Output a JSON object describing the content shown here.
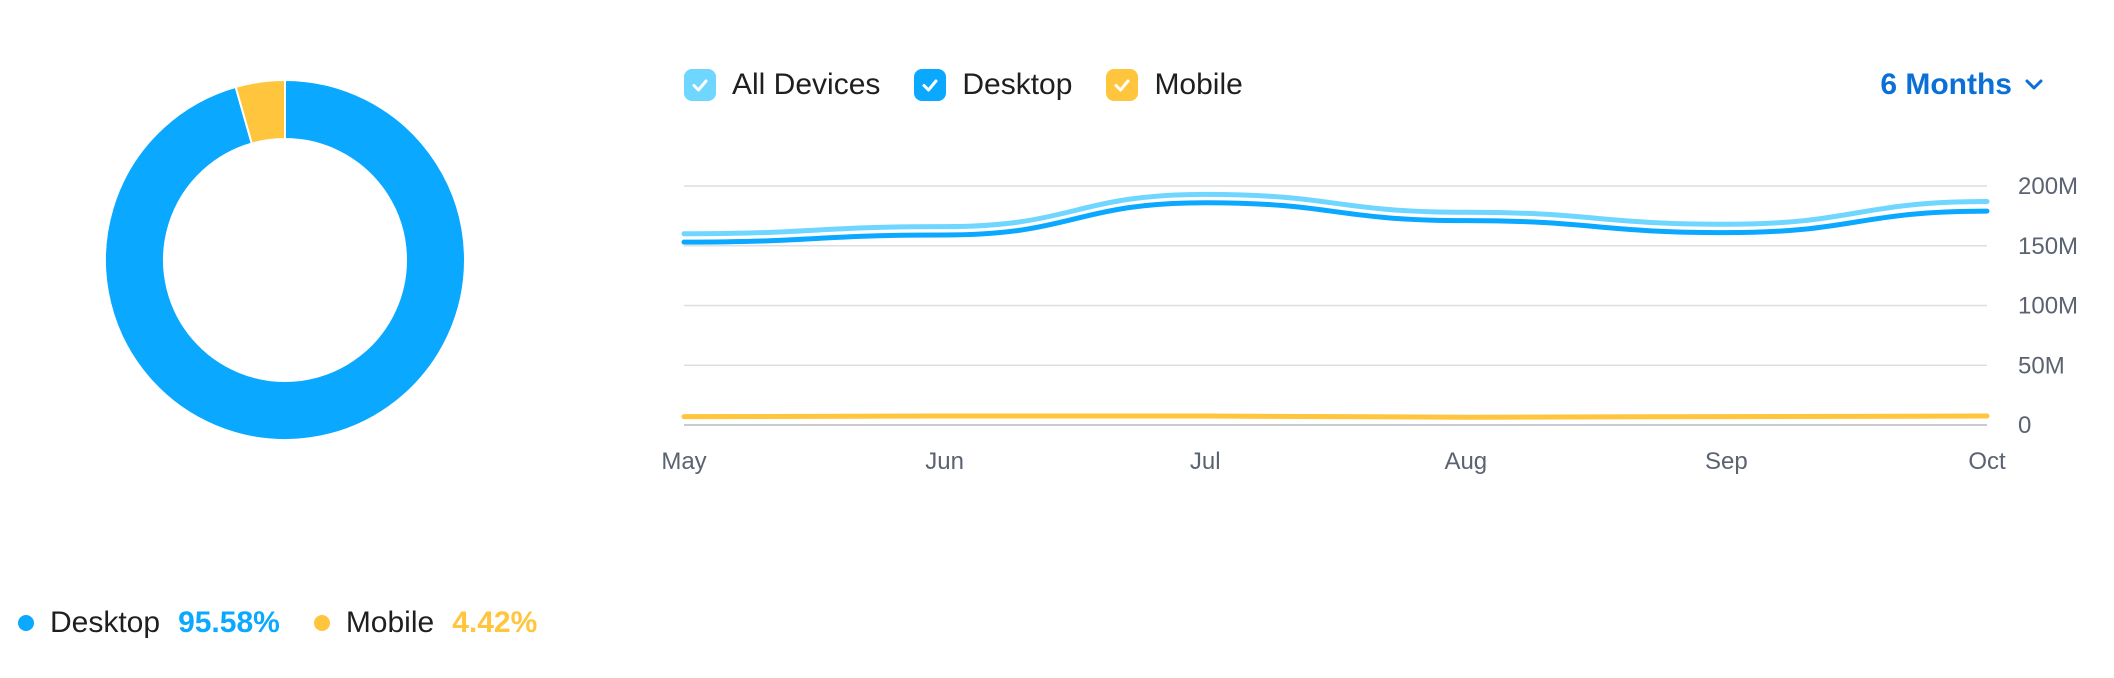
{
  "colors": {
    "all_devices": "#6fd6ff",
    "desktop": "#0aa8ff",
    "mobile": "#ffc53d",
    "grid": "#dcdfe3",
    "accent": "#0a6fd6"
  },
  "pie_legend": [
    {
      "label": "Desktop",
      "value_text": "95.58%",
      "color": "#0aa8ff"
    },
    {
      "label": "Mobile",
      "value_text": "4.42%",
      "color": "#ffc53d"
    }
  ],
  "toggles": [
    {
      "label": "All Devices",
      "color": "#6fd6ff",
      "icon": "check-icon"
    },
    {
      "label": "Desktop",
      "color": "#0aa8ff",
      "icon": "check-icon"
    },
    {
      "label": "Mobile",
      "color": "#ffc53d",
      "icon": "check-icon"
    }
  ],
  "period": {
    "label": "6 Months",
    "icon": "chevron-down-icon"
  },
  "chart_data": [
    {
      "type": "pie",
      "donut": true,
      "categories": [
        "Desktop",
        "Mobile"
      ],
      "values": [
        95.58,
        4.42
      ],
      "colors": [
        "#0aa8ff",
        "#ffc53d"
      ]
    },
    {
      "type": "line",
      "categories": [
        "May",
        "Jun",
        "Jul",
        "Aug",
        "Sep",
        "Oct"
      ],
      "series": [
        {
          "name": "All Devices",
          "values": [
            160,
            166,
            193,
            178,
            168,
            187
          ],
          "color": "#6fd6ff"
        },
        {
          "name": "Desktop",
          "values": [
            153,
            159,
            186,
            171,
            161,
            179
          ],
          "color": "#0aa8ff"
        },
        {
          "name": "Mobile",
          "values": [
            7,
            7.5,
            7.5,
            6.5,
            7,
            7.5
          ],
          "color": "#ffc53d"
        }
      ],
      "y_ticks": [
        0,
        50,
        100,
        150,
        200
      ],
      "y_tick_labels": [
        "0",
        "50M",
        "100M",
        "150M",
        "200M"
      ],
      "ylim": [
        0,
        200
      ],
      "grid": true,
      "smooth": true
    }
  ]
}
